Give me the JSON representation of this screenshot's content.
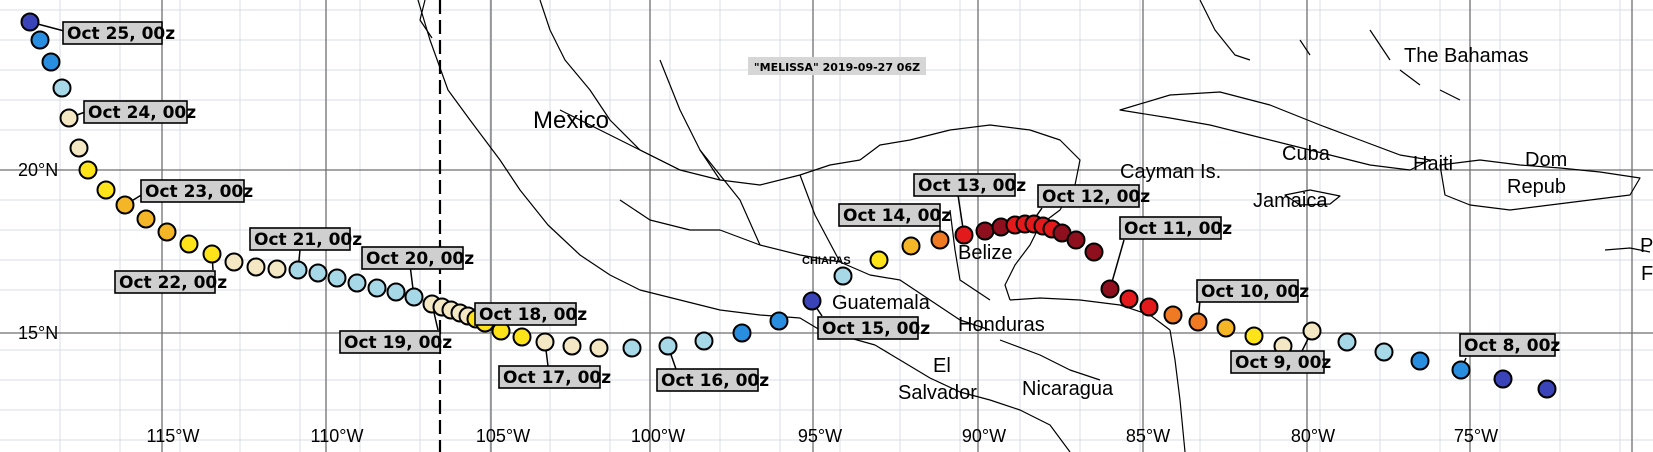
{
  "storm_label": "\"MELISSA\" 2019-09-27 06Z",
  "colors": {
    "background": "#ffffff",
    "grid_minor": "#d9dde4",
    "grid_major": "#6f6f6f",
    "coast": "#000000",
    "label_box": "#cfcfcf"
  },
  "map_labels": {
    "mexico": "Mexico",
    "chiapas": "CHIAPAS",
    "guatemala": "Guatemala",
    "belize": "Belize",
    "honduras": "Honduras",
    "el": "El",
    "salvador": "Salvador",
    "nicaragua": "Nicaragua",
    "cayman": "Cayman Is.",
    "cuba": "Cuba",
    "jamaica": "Jamaica",
    "haiti": "Haiti",
    "bahamas": "The Bahamas",
    "dom1": "Dom",
    "dom2": "Repub",
    "p1": "P",
    "p2": "F"
  },
  "lat_labels": [
    "20°N",
    "15°N"
  ],
  "lon_labels": [
    "115°W",
    "110°W",
    "105°W",
    "100°W",
    "95°W",
    "90°W",
    "85°W",
    "80°W",
    "75°W"
  ],
  "date_labels": [
    "Oct 25, 00z",
    "Oct 24, 00z",
    "Oct 23, 00z",
    "Oct 22, 00z",
    "Oct 21, 00z",
    "Oct 20, 00z",
    "Oct 19, 00z",
    "Oct 18, 00z",
    "Oct 17, 00z",
    "Oct 16, 00z",
    "Oct 15, 00z",
    "Oct 14, 00z",
    "Oct 13, 00z",
    "Oct 12, 00z",
    "Oct 11, 00z",
    "Oct 10, 00z",
    "Oct 9, 00z",
    "Oct 8, 00z"
  ],
  "track_colors": {
    "td": "#3a44b8",
    "ts_blue": "#2a8ee0",
    "ts_light": "#a7d8e8",
    "beige": "#f3e7c4",
    "yellow": "#ffe31a",
    "gold": "#f4b626",
    "orange": "#f07a24",
    "red": "#e31a1c",
    "darkred": "#8e0f1e"
  }
}
